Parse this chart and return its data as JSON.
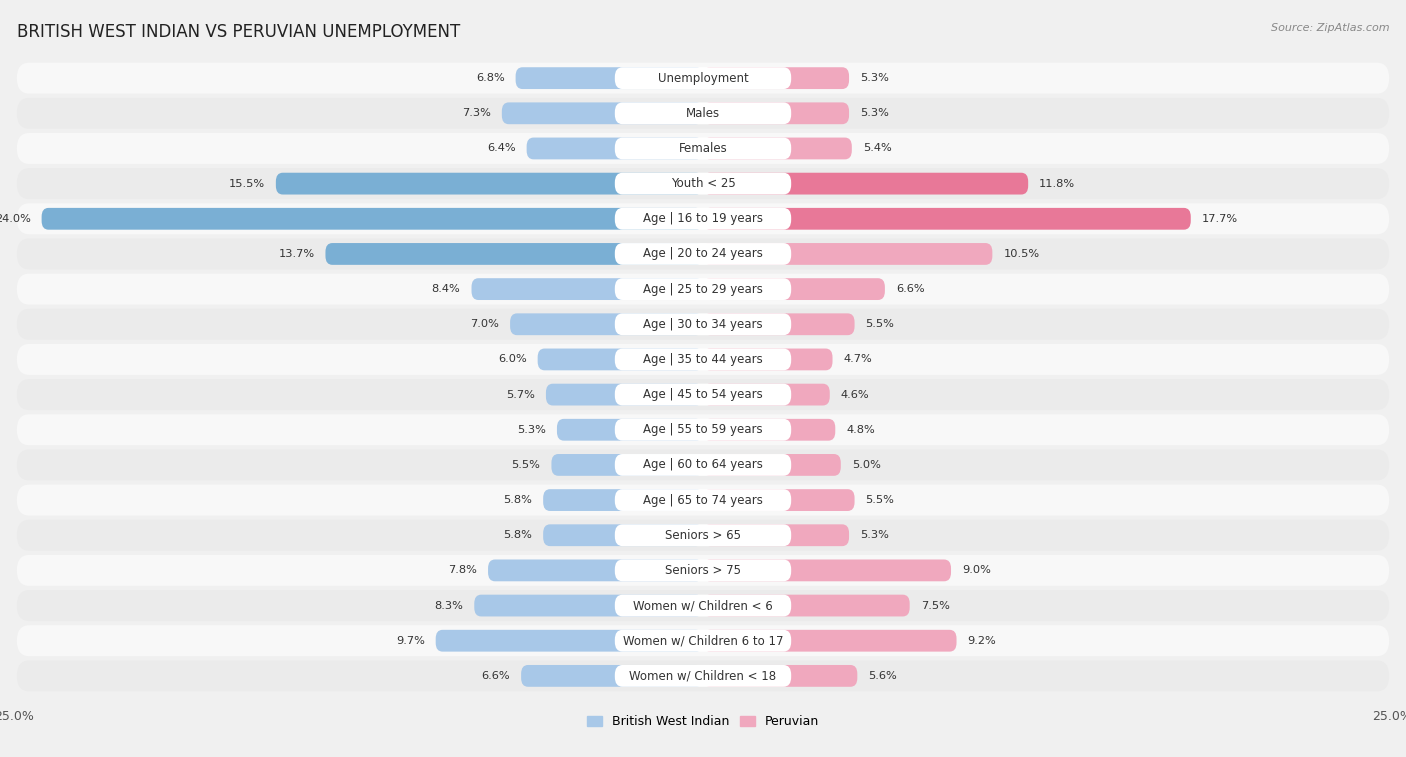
{
  "title": "BRITISH WEST INDIAN VS PERUVIAN UNEMPLOYMENT",
  "source": "Source: ZipAtlas.com",
  "categories": [
    "Unemployment",
    "Males",
    "Females",
    "Youth < 25",
    "Age | 16 to 19 years",
    "Age | 20 to 24 years",
    "Age | 25 to 29 years",
    "Age | 30 to 34 years",
    "Age | 35 to 44 years",
    "Age | 45 to 54 years",
    "Age | 55 to 59 years",
    "Age | 60 to 64 years",
    "Age | 65 to 74 years",
    "Seniors > 65",
    "Seniors > 75",
    "Women w/ Children < 6",
    "Women w/ Children 6 to 17",
    "Women w/ Children < 18"
  ],
  "british_values": [
    6.8,
    7.3,
    6.4,
    15.5,
    24.0,
    13.7,
    8.4,
    7.0,
    6.0,
    5.7,
    5.3,
    5.5,
    5.8,
    5.8,
    7.8,
    8.3,
    9.7,
    6.6
  ],
  "peruvian_values": [
    5.3,
    5.3,
    5.4,
    11.8,
    17.7,
    10.5,
    6.6,
    5.5,
    4.7,
    4.6,
    4.8,
    5.0,
    5.5,
    5.3,
    9.0,
    7.5,
    9.2,
    5.6
  ],
  "british_color": "#a8c8e8",
  "peruvian_color": "#f0a8be",
  "british_color_strong": "#7aafd4",
  "peruvian_color_strong": "#e87898",
  "axis_limit": 25.0,
  "bg_color": "#f0f0f0",
  "row_light": "#f8f8f8",
  "row_dark": "#ebebeb",
  "legend_british": "British West Indian",
  "legend_peruvian": "Peruvian",
  "title_fontsize": 12,
  "label_fontsize": 8.5,
  "value_fontsize": 8.2
}
